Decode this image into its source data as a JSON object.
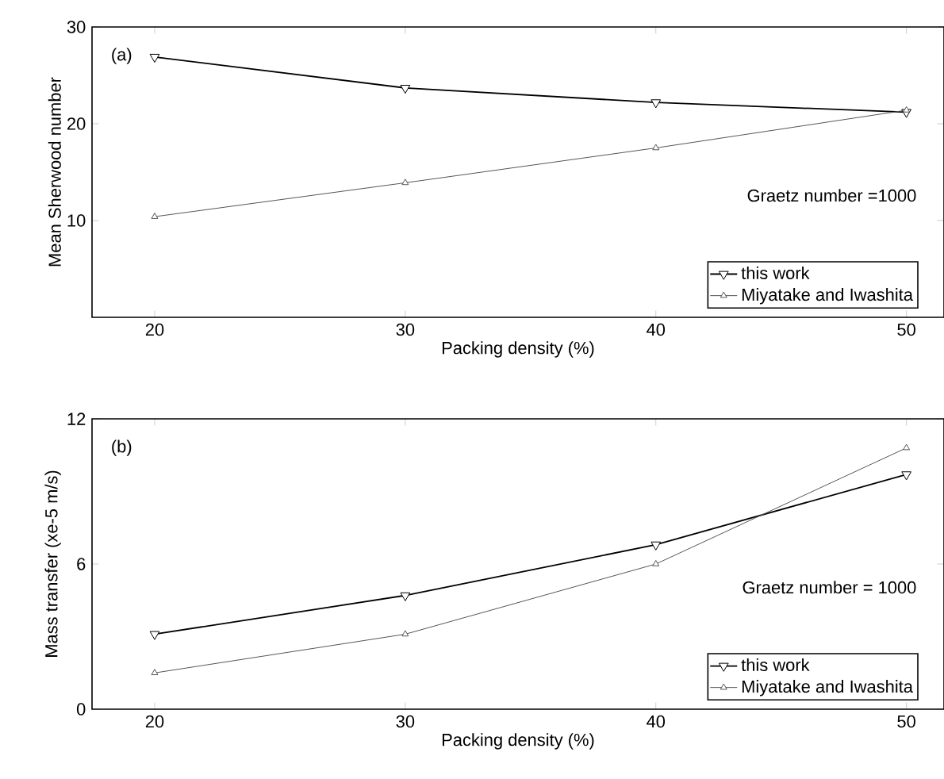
{
  "chart_data": [
    {
      "type": "line",
      "xlabel": "Packing density (%)",
      "ylabel": "Mean Sherwood number",
      "x": [
        20,
        30,
        40,
        50
      ],
      "xlim": [
        17.5,
        51.5
      ],
      "xticks": [
        20,
        30,
        40,
        50
      ],
      "ylim": [
        0,
        30
      ],
      "yticks": [
        10,
        20,
        30
      ],
      "legend": "bottom right",
      "annotations": [
        "(a)",
        "Graetz number =1000"
      ],
      "series": [
        {
          "name": "this work",
          "color": "#000000",
          "marker": "triangle_down",
          "values": [
            26.9,
            23.7,
            22.2,
            21.2
          ]
        },
        {
          "name": "Miyatake and Iwashita",
          "color": "#555555",
          "marker": "triangle",
          "values": [
            10.4,
            13.9,
            17.5,
            21.4
          ]
        }
      ]
    },
    {
      "type": "line",
      "xlabel": "Packing density (%)",
      "ylabel": "Mass transfer (xe-5 m/s)",
      "x": [
        20,
        30,
        40,
        50
      ],
      "xlim": [
        17.5,
        51.5
      ],
      "xticks": [
        20,
        30,
        40,
        50
      ],
      "ylim": [
        0,
        12
      ],
      "yticks": [
        0,
        6,
        12
      ],
      "legend": "bottom right",
      "annotations": [
        "(b)",
        "Graetz number = 1000"
      ],
      "series": [
        {
          "name": "this work",
          "color": "#000000",
          "marker": "triangle_down",
          "values": [
            3.1,
            4.7,
            6.8,
            9.7
          ]
        },
        {
          "name": "Miyatake and Iwashita",
          "color": "#555555",
          "marker": "triangle",
          "values": [
            1.5,
            3.1,
            6.0,
            10.8
          ]
        }
      ]
    }
  ]
}
